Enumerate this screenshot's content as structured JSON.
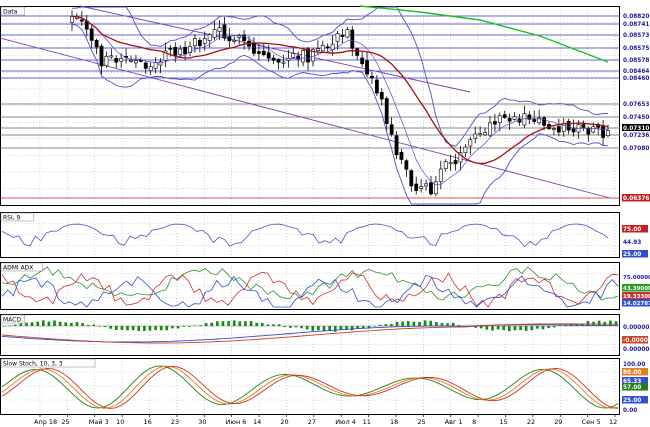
{
  "chart_data": {
    "type": "candlestick",
    "x_labels": [
      "Апр 18",
      "25",
      "Май 3",
      "10",
      "16",
      "23",
      "30",
      "Июн 6",
      "14",
      "20",
      "27",
      "Июл 4",
      "11",
      "18",
      "25",
      "Авг 1",
      "8",
      "15",
      "22",
      "29",
      "Сен 5",
      "12"
    ],
    "panels": [
      {
        "name": "Data",
        "y_labels": [
          "0.08820",
          "0.08741",
          "0.08573",
          "0.08575",
          "0.08578",
          "0.08464",
          "0.08460",
          "0.07653",
          "0.07450",
          "0.07310",
          "0.07236",
          "0.07080",
          "0.06376"
        ],
        "price_series": [
          "candles",
          "bollinger-upper",
          "bollinger-lower",
          "moving-average",
          "long-average",
          "trend-channel",
          "horizontal-levels"
        ],
        "last_value": "0.07310",
        "trend_low": "0.06376"
      },
      {
        "name": "RSI, 9",
        "y_labels": [
          "75.00",
          "44.93",
          "25.00"
        ],
        "last_value": "44.93"
      },
      {
        "name": "ADMI ADX",
        "y_labels": [
          "75.00000",
          "43.39000",
          "19.33300",
          "14.02787"
        ]
      },
      {
        "name": "MACD",
        "y_labels": [
          "0.00000",
          "-0.00000",
          "0.00000"
        ]
      },
      {
        "name": "Slow Stoch, 10, 3, 3",
        "y_labels": [
          "100.00",
          "80.00",
          "65.33",
          "57.00",
          "25.00",
          "0.00"
        ]
      }
    ],
    "colors": {
      "up": "#ffffff",
      "down": "#000000",
      "band": "#5050c8",
      "ma": "#a01010",
      "long_ma": "#20c020",
      "rsi": "#5050d0",
      "adx": "#309030",
      "plus_di": "#d03030",
      "minus_di": "#3050d0",
      "macd_hist": "#118811",
      "macd_line": "#3050d0",
      "signal": "#d04020",
      "stoch_k": "#208020",
      "stoch_d": "#e08020",
      "stoch_3": "#d03020"
    }
  }
}
